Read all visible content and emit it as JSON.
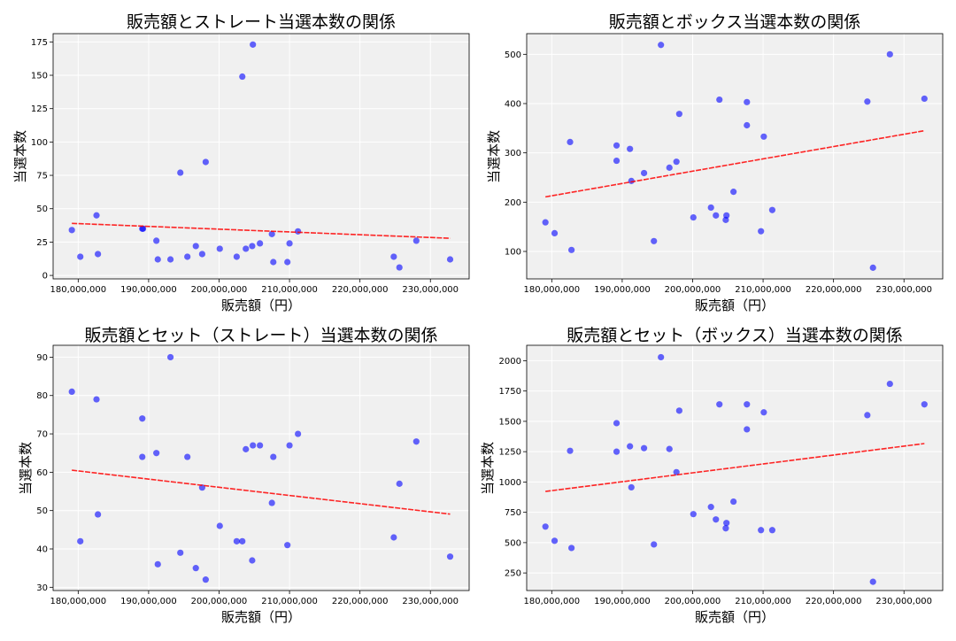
{
  "chart_data": [
    {
      "type": "scatter",
      "title": "販売額とストレート当選本数の関係",
      "xlabel": "販売額（円）",
      "ylabel": "当選本数",
      "xlim": [
        176440000,
        235500000
      ],
      "ylim": [
        -2.6,
        181.2
      ],
      "xticks": [
        180000000,
        190000000,
        200000000,
        210000000,
        220000000,
        230000000
      ],
      "xtick_labels": [
        "180,000,000",
        "190,000,000",
        "200,000,000",
        "210,000,000",
        "220,000,000",
        "230,000,000"
      ],
      "yticks": [
        0,
        25,
        50,
        75,
        100,
        125,
        150,
        175
      ],
      "ytick_labels": [
        "0",
        "25",
        "50",
        "75",
        "100",
        "125",
        "150",
        "175"
      ],
      "grid": true,
      "trendline": "linear",
      "x": [
        179100000,
        180300000,
        182600000,
        182800000,
        189100000,
        189200000,
        191100000,
        191300000,
        193100000,
        194500000,
        195500000,
        196700000,
        197600000,
        198100000,
        200100000,
        202500000,
        203300000,
        203800000,
        204700000,
        204800000,
        205800000,
        207500000,
        207700000,
        209700000,
        210000000,
        211200000,
        224800000,
        225600000,
        228000000,
        232800000
      ],
      "y": [
        34,
        14,
        45,
        16,
        35,
        35,
        26,
        12,
        12,
        77,
        14,
        22,
        16,
        85,
        20,
        14,
        149,
        20,
        22,
        173,
        24,
        31,
        10,
        10,
        24,
        33,
        14,
        6,
        26,
        12
      ]
    },
    {
      "type": "scatter",
      "title": "販売額とボックス当選本数の関係",
      "xlabel": "販売額（円）",
      "ylabel": "当選本数",
      "xlim": [
        176440000,
        235500000
      ],
      "ylim": [
        44.3,
        541.9
      ],
      "xticks": [
        180000000,
        190000000,
        200000000,
        210000000,
        220000000,
        230000000
      ],
      "xtick_labels": [
        "180,000,000",
        "190,000,000",
        "200,000,000",
        "210,000,000",
        "220,000,000",
        "230,000,000"
      ],
      "yticks": [
        100,
        200,
        300,
        400,
        500
      ],
      "ytick_labels": [
        "100",
        "200",
        "300",
        "400",
        "500"
      ],
      "grid": true,
      "trendline": "linear",
      "x": [
        179100000,
        180400000,
        182600000,
        182800000,
        189200000,
        189200000,
        191100000,
        191300000,
        193100000,
        194500000,
        195500000,
        196700000,
        197700000,
        198100000,
        200100000,
        202600000,
        203300000,
        203800000,
        204700000,
        204800000,
        205800000,
        207700000,
        207700000,
        209700000,
        210100000,
        211300000,
        224800000,
        225600000,
        228000000,
        232900000
      ],
      "y": [
        159,
        137,
        322,
        103,
        315,
        284,
        308,
        243,
        259,
        121,
        519,
        270,
        282,
        379,
        169,
        189,
        173,
        408,
        164,
        173,
        221,
        356,
        403,
        141,
        333,
        184,
        404,
        67,
        500,
        410
      ]
    },
    {
      "type": "scatter",
      "title": "販売額とセット（ストレート）当選本数の関係",
      "xlabel": "販売額（円）",
      "ylabel": "当選本数",
      "xlim": [
        176440000,
        235500000
      ],
      "ylim": [
        29.15,
        93.1
      ],
      "xticks": [
        180000000,
        190000000,
        200000000,
        210000000,
        220000000,
        230000000
      ],
      "xtick_labels": [
        "180,000,000",
        "190,000,000",
        "200,000,000",
        "210,000,000",
        "220,000,000",
        "230,000,000"
      ],
      "yticks": [
        30,
        40,
        50,
        60,
        70,
        80,
        90
      ],
      "ytick_labels": [
        "30",
        "40",
        "50",
        "60",
        "70",
        "80",
        "90"
      ],
      "grid": true,
      "trendline": "linear",
      "x": [
        179100000,
        180300000,
        182600000,
        182800000,
        189100000,
        189100000,
        191100000,
        191300000,
        193100000,
        194500000,
        195500000,
        196700000,
        197600000,
        198100000,
        200100000,
        202500000,
        203300000,
        203800000,
        204700000,
        204800000,
        205800000,
        207500000,
        207700000,
        209700000,
        210000000,
        211200000,
        224800000,
        225600000,
        228000000,
        232800000
      ],
      "y": [
        81,
        42,
        79,
        49,
        74,
        64,
        65,
        36,
        90,
        39,
        64,
        35,
        56,
        32,
        46,
        42,
        42,
        66,
        37,
        67,
        67,
        52,
        64,
        41,
        67,
        70,
        43,
        57,
        68,
        38
      ]
    },
    {
      "type": "scatter",
      "title": "販売額とセット（ボックス）当選本数の関係",
      "xlabel": "販売額（円）",
      "ylabel": "当選本数",
      "xlim": [
        176440000,
        235500000
      ],
      "ylim": [
        105,
        2127
      ],
      "xticks": [
        180000000,
        190000000,
        200000000,
        210000000,
        220000000,
        230000000
      ],
      "xtick_labels": [
        "180,000,000",
        "190,000,000",
        "200,000,000",
        "210,000,000",
        "220,000,000",
        "230,000,000"
      ],
      "yticks": [
        250,
        500,
        750,
        1000,
        1250,
        1500,
        1750,
        2000
      ],
      "ytick_labels": [
        "250",
        "500",
        "750",
        "1000",
        "1250",
        "1500",
        "1750",
        "2000"
      ],
      "grid": true,
      "trendline": "linear",
      "x": [
        179100000,
        180400000,
        182600000,
        182800000,
        189200000,
        189200000,
        191100000,
        191300000,
        193100000,
        194500000,
        195500000,
        196700000,
        197700000,
        198100000,
        200100000,
        202600000,
        203300000,
        203800000,
        204700000,
        204800000,
        205800000,
        207700000,
        207700000,
        209700000,
        210100000,
        211300000,
        224800000,
        225600000,
        228000000,
        232900000
      ],
      "y": [
        632,
        515,
        1257,
        456,
        1485,
        1250,
        1294,
        956,
        1279,
        485,
        2029,
        1272,
        1081,
        1588,
        735,
        794,
        691,
        1640,
        618,
        662,
        838,
        1434,
        1640,
        603,
        1574,
        603,
        1551,
        177,
        1809,
        1640
      ]
    }
  ],
  "colors": {
    "points": "#0000ff",
    "trendline": "#ff0000",
    "plot_background": "#f0f0f0",
    "grid": "#ffffff"
  }
}
